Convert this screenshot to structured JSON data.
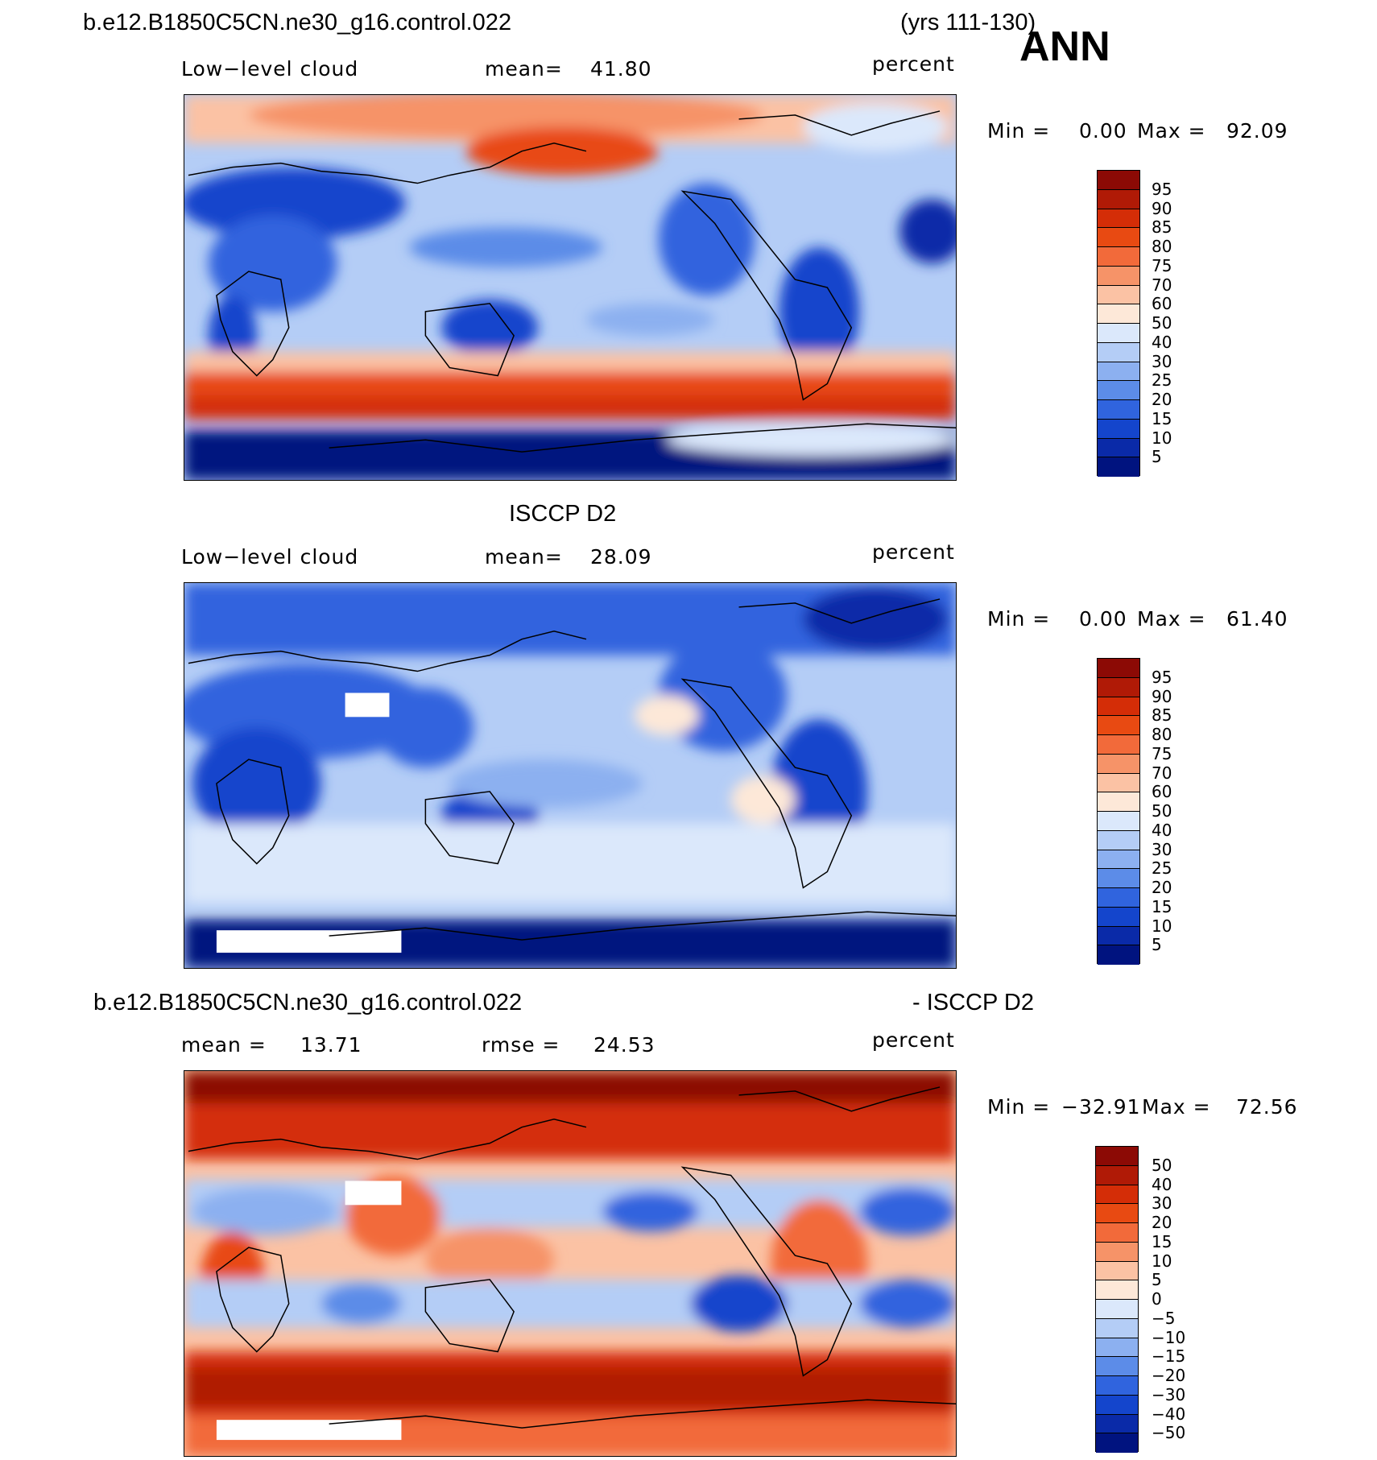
{
  "header": {
    "case_name": "b.e12.B1850C5CN.ne30_g16.control.022",
    "years": "(yrs 111-130)",
    "season": "ANN"
  },
  "panel1": {
    "variable": "Low−level cloud",
    "mean_label": "mean=",
    "mean_value": "41.80",
    "units": "percent",
    "min_label": "Min =",
    "min_value": "0.00",
    "max_label": "Max =",
    "max_value": "92.09"
  },
  "panel2": {
    "title": "ISCCP D2",
    "variable": "Low−level cloud",
    "mean_label": "mean=",
    "mean_value": "28.09",
    "units": "percent",
    "min_label": "Min =",
    "min_value": "0.00",
    "max_label": "Max =",
    "max_value": "61.40"
  },
  "panel3": {
    "title_left": "b.e12.B1850C5CN.ne30_g16.control.022",
    "title_right": "- ISCCP D2",
    "mean_label": "mean =",
    "mean_value": "13.71",
    "rmse_label": "rmse =",
    "rmse_value": "24.53",
    "units": "percent",
    "min_label": "Min =",
    "min_value": "−32.91",
    "max_label": "Max =",
    "max_value": "72.56"
  },
  "colorbar_abs": {
    "levels": [
      "95",
      "90",
      "85",
      "80",
      "75",
      "70",
      "60",
      "50",
      "40",
      "30",
      "25",
      "20",
      "15",
      "10",
      "5"
    ],
    "colors": [
      "#8c0a05",
      "#b01a06",
      "#d42d07",
      "#e84a12",
      "#f26a3a",
      "#f69368",
      "#fbc2a4",
      "#fde8d8",
      "#dbe8fb",
      "#b4cdf6",
      "#8cb0f0",
      "#5c8ce8",
      "#3064de",
      "#1445cc",
      "#0a2aa8",
      "#00137f"
    ]
  },
  "colorbar_diff": {
    "levels": [
      "50",
      "40",
      "30",
      "20",
      "15",
      "10",
      "5",
      "0",
      "−5",
      "−10",
      "−15",
      "−20",
      "−30",
      "−40",
      "−50"
    ],
    "colors": [
      "#8c0a05",
      "#b01a06",
      "#d42d07",
      "#e84a12",
      "#f26a3a",
      "#f69368",
      "#fbc2a4",
      "#fde8d8",
      "#dbe8fb",
      "#b4cdf6",
      "#8cb0f0",
      "#5c8ce8",
      "#3064de",
      "#1445cc",
      "#0a2aa8",
      "#00137f"
    ]
  }
}
